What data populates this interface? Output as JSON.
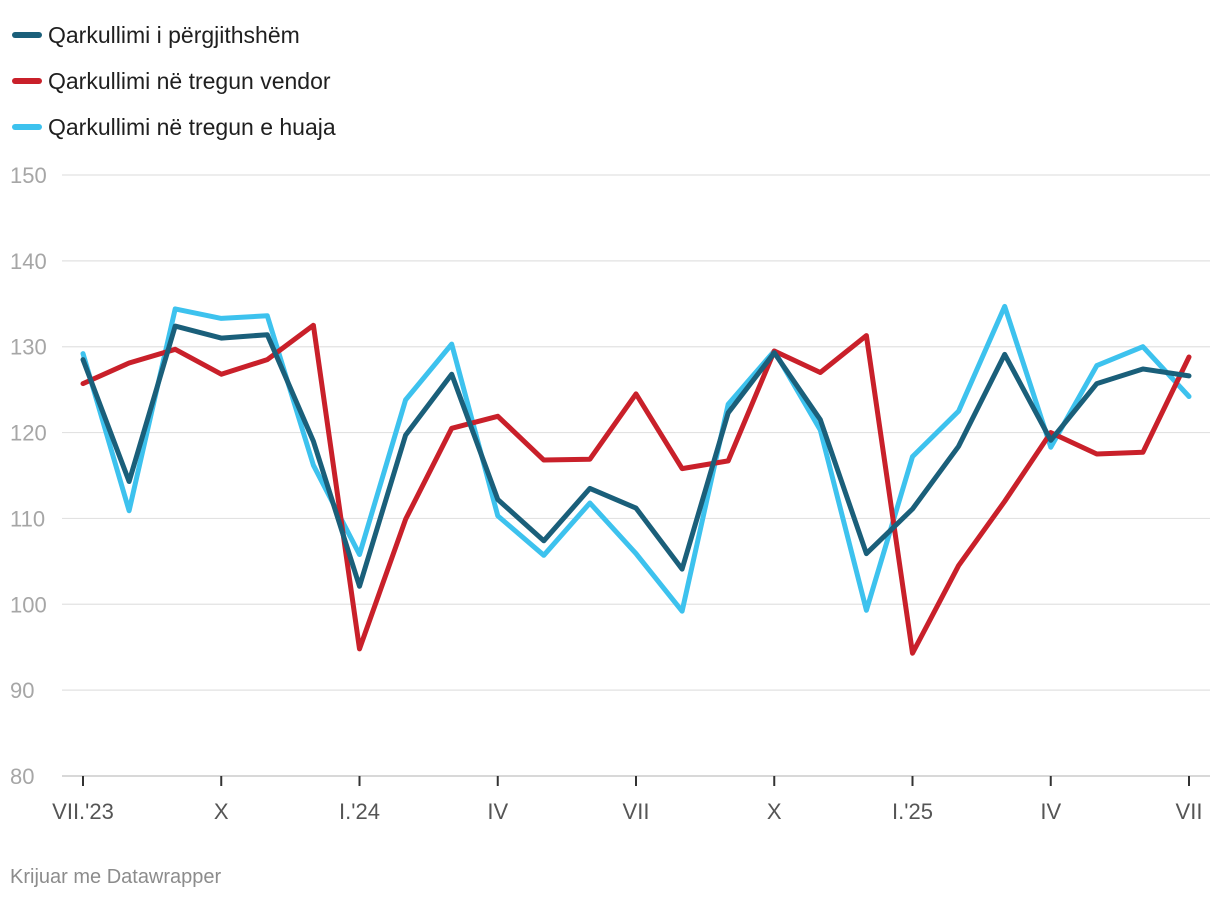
{
  "chart_data": {
    "type": "line",
    "title": "",
    "xlabel": "",
    "ylabel": "",
    "ylim": [
      80,
      150
    ],
    "y_ticks": [
      80,
      90,
      100,
      110,
      120,
      130,
      140,
      150
    ],
    "grid": true,
    "legend_position": "top-left",
    "x": [
      "VII.'23",
      "VIII",
      "IX",
      "X",
      "XI",
      "XII",
      "I.'24",
      "II",
      "III",
      "IV",
      "V",
      "VI",
      "VII",
      "VIII",
      "IX",
      "X",
      "XI",
      "XII",
      "I.'25",
      "II",
      "III",
      "IV",
      "V",
      "VI",
      "VII"
    ],
    "x_tick_labels": [
      {
        "index": 0,
        "label": "VII.'23"
      },
      {
        "index": 3,
        "label": "X"
      },
      {
        "index": 6,
        "label": "I.'24"
      },
      {
        "index": 9,
        "label": "IV"
      },
      {
        "index": 12,
        "label": "VII"
      },
      {
        "index": 15,
        "label": "X"
      },
      {
        "index": 18,
        "label": "I.'25"
      },
      {
        "index": 21,
        "label": "IV"
      },
      {
        "index": 24,
        "label": "VII"
      }
    ],
    "series": [
      {
        "name": "Qarkullimi i përgjithshëm",
        "color": "#1a5f7a",
        "values": [
          128.5,
          114.3,
          132.4,
          131.0,
          131.4,
          119.0,
          102.1,
          119.7,
          126.8,
          112.2,
          107.4,
          113.5,
          111.2,
          104.1,
          122.3,
          129.3,
          121.5,
          105.9,
          111.1,
          118.4,
          129.1,
          119.1,
          125.7,
          127.4,
          126.6
        ]
      },
      {
        "name": "Qarkullimi në tregun vendor",
        "color": "#c9202a",
        "values": [
          125.7,
          128.1,
          129.7,
          126.8,
          128.5,
          132.5,
          94.8,
          109.9,
          120.5,
          121.9,
          116.8,
          116.9,
          124.5,
          115.8,
          116.7,
          129.5,
          127.0,
          131.3,
          94.3,
          104.5,
          112.0,
          120.0,
          117.5,
          117.7,
          128.8
        ]
      },
      {
        "name": "Qarkullimi në tregun e huaja",
        "color": "#3dc2ee",
        "values": [
          129.2,
          110.9,
          134.4,
          133.3,
          133.6,
          116.2,
          105.8,
          123.8,
          130.3,
          110.3,
          105.7,
          111.8,
          105.9,
          99.2,
          123.3,
          129.5,
          120.3,
          99.3,
          117.2,
          122.5,
          134.7,
          118.3,
          127.8,
          130.0,
          124.2
        ]
      }
    ]
  },
  "footer": {
    "credit": "Krijuar me Datawrapper"
  }
}
